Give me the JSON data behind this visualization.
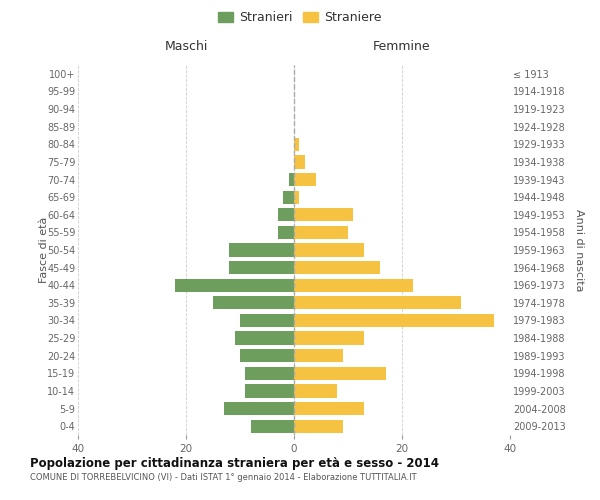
{
  "age_groups": [
    "0-4",
    "5-9",
    "10-14",
    "15-19",
    "20-24",
    "25-29",
    "30-34",
    "35-39",
    "40-44",
    "45-49",
    "50-54",
    "55-59",
    "60-64",
    "65-69",
    "70-74",
    "75-79",
    "80-84",
    "85-89",
    "90-94",
    "95-99",
    "100+"
  ],
  "birth_years": [
    "2009-2013",
    "2004-2008",
    "1999-2003",
    "1994-1998",
    "1989-1993",
    "1984-1988",
    "1979-1983",
    "1974-1978",
    "1969-1973",
    "1964-1968",
    "1959-1963",
    "1954-1958",
    "1949-1953",
    "1944-1948",
    "1939-1943",
    "1934-1938",
    "1929-1933",
    "1924-1928",
    "1919-1923",
    "1914-1918",
    "≤ 1913"
  ],
  "maschi": [
    8,
    13,
    9,
    9,
    10,
    11,
    10,
    15,
    22,
    12,
    12,
    3,
    3,
    2,
    1,
    0,
    0,
    0,
    0,
    0,
    0
  ],
  "femmine": [
    9,
    13,
    8,
    17,
    9,
    13,
    37,
    31,
    22,
    16,
    13,
    10,
    11,
    1,
    4,
    2,
    1,
    0,
    0,
    0,
    0
  ],
  "maschi_color": "#6e9e5e",
  "femmine_color": "#f5c242",
  "background_color": "#ffffff",
  "grid_color": "#cccccc",
  "title": "Popolazione per cittadinanza straniera per età e sesso - 2014",
  "subtitle": "COMUNE DI TORREBELVICINO (VI) - Dati ISTAT 1° gennaio 2014 - Elaborazione TUTTITALIA.IT",
  "xlabel_left": "Maschi",
  "xlabel_right": "Femmine",
  "ylabel_left": "Fasce di età",
  "ylabel_right": "Anni di nascita",
  "legend_stranieri": "Stranieri",
  "legend_straniere": "Straniere",
  "xlim": 40
}
